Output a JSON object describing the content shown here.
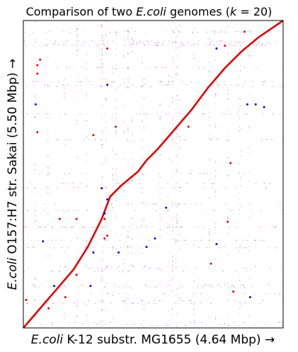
{
  "chart_data": {
    "type": "scatter",
    "title": {
      "prefix": "Comparison of two ",
      "italic_organism": "E.coli",
      "middle": " genomes (",
      "italic_k": "k",
      "suffix": " = 20)"
    },
    "xlabel": {
      "italic": "E.coli",
      "rest": " K-12 substr. MG1655 (4.64 Mbp) →"
    },
    "ylabel": {
      "italic": "E.coli",
      "rest": " O157:H7 str. Sakai (5.50 Mbp) →"
    },
    "xlim_mbp": [
      0,
      4.64
    ],
    "ylim_mbp": [
      0,
      5.5
    ],
    "ticks_shown": false,
    "grid": false,
    "series": [
      {
        "color": "#e00000",
        "main_diagonal": [
          [
            0.0,
            0.0
          ],
          [
            0.3,
            0.35
          ],
          [
            0.6,
            0.7
          ],
          [
            0.9,
            1.05
          ],
          [
            1.15,
            1.45
          ],
          [
            1.25,
            1.65
          ],
          [
            1.4,
            1.95
          ],
          [
            1.55,
            2.35
          ],
          [
            1.75,
            2.55
          ],
          [
            2.05,
            2.8
          ],
          [
            2.2,
            3.0
          ],
          [
            2.4,
            3.2
          ],
          [
            2.7,
            3.55
          ],
          [
            3.0,
            3.9
          ],
          [
            3.3,
            4.3
          ],
          [
            3.6,
            4.65
          ],
          [
            3.9,
            4.95
          ],
          [
            4.2,
            5.2
          ],
          [
            4.64,
            5.5
          ]
        ],
        "points": [
          [
            0.25,
            4.7
          ],
          [
            0.25,
            4.55
          ],
          [
            0.3,
            4.8
          ],
          [
            1.5,
            5.0
          ],
          [
            3.6,
            5.05
          ],
          [
            3.95,
            5.3
          ],
          [
            1.65,
            3.6
          ],
          [
            2.95,
            3.6
          ],
          [
            0.25,
            3.5
          ],
          [
            1.25,
            3.45
          ],
          [
            3.7,
            2.95
          ],
          [
            0.95,
            1.95
          ],
          [
            1.45,
            1.95
          ],
          [
            0.65,
            1.95
          ],
          [
            1.5,
            1.65
          ],
          [
            3.65,
            1.9
          ],
          [
            0.75,
            0.55
          ],
          [
            0.95,
            0.95
          ],
          [
            1.45,
            1.6
          ],
          [
            3.75,
            0.65
          ],
          [
            3.35,
            1.15
          ],
          [
            0.45,
            0.35
          ],
          [
            0.05,
            0.5
          ]
        ]
      },
      {
        "color": "#0000dd",
        "points": [
          [
            0.22,
            4.0
          ],
          [
            1.5,
            4.35
          ],
          [
            3.45,
            5.0
          ],
          [
            4.15,
            4.0
          ],
          [
            4.3,
            3.95
          ],
          [
            4.0,
            4.0
          ],
          [
            1.4,
            2.5
          ],
          [
            1.45,
            2.05
          ],
          [
            1.5,
            2.3
          ],
          [
            2.55,
            2.15
          ],
          [
            1.25,
            1.35
          ],
          [
            2.2,
            1.45
          ],
          [
            2.35,
            1.6
          ],
          [
            3.45,
            1.5
          ],
          [
            0.35,
            1.55
          ],
          [
            1.7,
            1.35
          ],
          [
            1.2,
            0.75
          ],
          [
            4.05,
            0.55
          ],
          [
            0.55,
            0.75
          ]
        ]
      }
    ]
  }
}
